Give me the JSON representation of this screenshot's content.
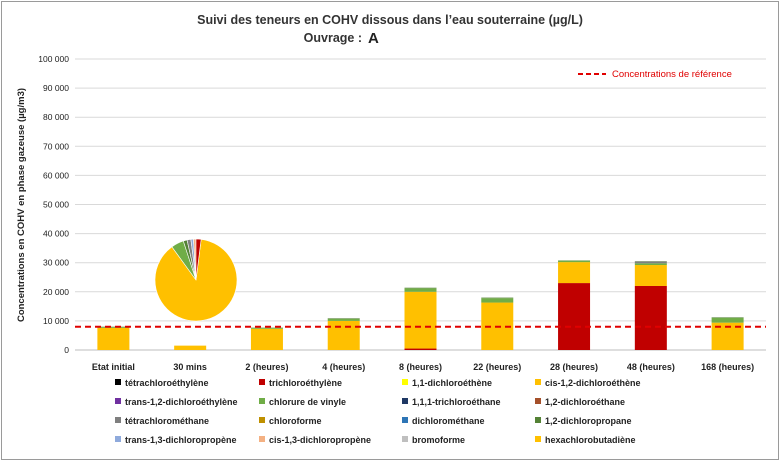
{
  "chart_data": {
    "type": "bar",
    "stacked": true,
    "title": "Suivi des teneurs en COHV dissous dans l’eau souterraine (µg/L)",
    "subtitle_prefix": "Ouvrage :",
    "subtitle_value": "A",
    "ylabel": "Concentrations en COHV en phase gazeuse (µg/m3)",
    "xlabel": "",
    "ylim": [
      0,
      100000
    ],
    "yticks": [
      0,
      10000,
      20000,
      30000,
      40000,
      50000,
      60000,
      70000,
      80000,
      90000,
      100000
    ],
    "ytick_labels": [
      "0",
      "10 000",
      "20 000",
      "30 000",
      "40 000",
      "50 000",
      "60 000",
      "70 000",
      "80 000",
      "90 000",
      "100 000"
    ],
    "grid": true,
    "categories": [
      "Etat initial",
      "30 mins",
      "2 (heures)",
      "4 (heures)",
      "8 (heures)",
      "22 (heures)",
      "28 (heures)",
      "48 (heures)",
      "168 (heures)"
    ],
    "reference_line": {
      "value": 8000,
      "label": "Concentrations de référence",
      "color": "#e00000"
    },
    "series": [
      {
        "name": "tétrachloroéthylène",
        "color": "#000000",
        "values": [
          0,
          0,
          0,
          0,
          0,
          0,
          0,
          0,
          0
        ]
      },
      {
        "name": "trichloroéthylène",
        "color": "#c00000",
        "values": [
          0,
          0,
          0,
          0,
          500,
          0,
          23000,
          22000,
          0
        ]
      },
      {
        "name": "1,1-dichloroéthène",
        "color": "#ffff00",
        "values": [
          0,
          0,
          0,
          0,
          0,
          0,
          0,
          0,
          0
        ]
      },
      {
        "name": "cis-1,2-dichloroéthène",
        "color": "#ffc000",
        "values": [
          7600,
          1500,
          7300,
          10000,
          19500,
          16300,
          7200,
          7200,
          9400
        ]
      },
      {
        "name": "trans-1,2-dichloroéthylène",
        "color": "#7030a0",
        "values": [
          0,
          0,
          0,
          0,
          0,
          0,
          0,
          0,
          0
        ]
      },
      {
        "name": "chlorure de vinyle",
        "color": "#70ad47",
        "values": [
          300,
          0,
          300,
          700,
          1200,
          1500,
          500,
          600,
          1600
        ]
      },
      {
        "name": "1,1,1-trichloroéthane",
        "color": "#1f3864",
        "values": [
          0,
          0,
          0,
          0,
          0,
          0,
          0,
          0,
          0
        ]
      },
      {
        "name": "1,2-dichloroéthane",
        "color": "#a5502a",
        "values": [
          0,
          0,
          0,
          0,
          0,
          0,
          0,
          0,
          0
        ]
      },
      {
        "name": "tétrachlorométhane",
        "color": "#7f7f7f",
        "values": [
          0,
          0,
          0,
          0,
          0,
          0,
          0,
          600,
          0
        ]
      },
      {
        "name": "chloroforme",
        "color": "#bf9000",
        "values": [
          0,
          0,
          0,
          0,
          0,
          0,
          0,
          0,
          0
        ]
      },
      {
        "name": "dichlorométhane",
        "color": "#2e75b6",
        "values": [
          0,
          0,
          0,
          0,
          0,
          0,
          0,
          0,
          0
        ]
      },
      {
        "name": "1,2-dichloropropane",
        "color": "#548235",
        "values": [
          100,
          0,
          100,
          200,
          200,
          200,
          100,
          100,
          200
        ]
      },
      {
        "name": "trans-1,3-dichloropropène",
        "color": "#8faadc",
        "values": [
          0,
          0,
          0,
          0,
          0,
          0,
          0,
          0,
          0
        ]
      },
      {
        "name": "cis-1,3-dichloropropène",
        "color": "#f4b183",
        "values": [
          0,
          0,
          0,
          0,
          0,
          0,
          0,
          0,
          0
        ]
      },
      {
        "name": "bromoforme",
        "color": "#bfbfbf",
        "values": [
          0,
          0,
          0,
          0,
          0,
          0,
          0,
          0,
          0
        ]
      },
      {
        "name": "hexachlorobutadiène",
        "color": "#ffc000",
        "values": [
          0,
          0,
          0,
          0,
          0,
          0,
          0,
          0,
          0
        ]
      }
    ],
    "legend_position": "bottom",
    "pie_inset": {
      "type": "pie",
      "slices": [
        {
          "series": "cis-1,2-dichloroéthène",
          "value": 88,
          "color": "#ffc000"
        },
        {
          "series": "chlorure de vinyle",
          "value": 5,
          "color": "#70ad47"
        },
        {
          "series": "1,2-dichloropropane",
          "value": 1.5,
          "color": "#548235"
        },
        {
          "series": "tétrachlorométhane",
          "value": 1.5,
          "color": "#7f7f7f"
        },
        {
          "series": "trans-1,3-dichloropropène",
          "value": 1,
          "color": "#8faadc"
        },
        {
          "series": "cis-1,3-dichloropropène",
          "value": 1,
          "color": "#f4b183"
        },
        {
          "series": "trichloroéthylène",
          "value": 2,
          "color": "#c00000"
        }
      ]
    }
  }
}
